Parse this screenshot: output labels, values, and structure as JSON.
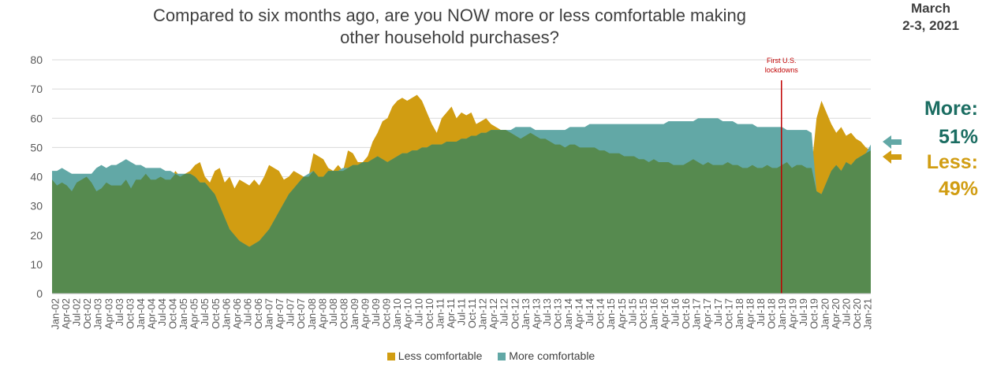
{
  "title_line1": "Compared to six months ago, are you NOW more or less comfortable making",
  "title_line2": "other household purchases?",
  "date_line1": "March",
  "date_line2": "2-3, 2021",
  "annotation": {
    "line1": "First U.S.",
    "line2": "lockdowns"
  },
  "callout": {
    "more_label": "More:",
    "more_value": "51%",
    "less_label": "Less:",
    "less_value": "49%"
  },
  "colors": {
    "less": "#d19d12",
    "more": "#62a8a6",
    "overlap": "#568a4f",
    "annotation": "#c00000",
    "more_text": "#1b6d62"
  },
  "chart_data": {
    "type": "area",
    "title": "Compared to six months ago, are you NOW more or less comfortable making other household purchases?",
    "ylim": [
      0,
      80
    ],
    "yticks": [
      0,
      10,
      20,
      30,
      40,
      50,
      60,
      70,
      80
    ],
    "x_tick_labels": [
      "Jan-02",
      "Apr-02",
      "Jul-02",
      "Oct-02",
      "Jan-03",
      "Apr-03",
      "Jul-03",
      "Oct-03",
      "Jan-04",
      "Apr-04",
      "Jul-04",
      "Oct-04",
      "Jan-05",
      "Apr-05",
      "Jul-05",
      "Oct-05",
      "Jan-06",
      "Apr-06",
      "Jul-06",
      "Oct-06",
      "Jan-07",
      "Apr-07",
      "Jul-07",
      "Oct-07",
      "Jan-08",
      "Apr-08",
      "Jul-08",
      "Oct-08",
      "Jan-09",
      "Apr-09",
      "Jul-09",
      "Oct-09",
      "Jan-10",
      "Apr-10",
      "Jul-10",
      "Oct-10",
      "Jan-11",
      "Apr-11",
      "Jul-11",
      "Oct-11",
      "Jan-12",
      "Apr-12",
      "Jul-12",
      "Oct-12",
      "Jan-13",
      "Apr-13",
      "Jul-13",
      "Oct-13",
      "Jan-14",
      "Apr-14",
      "Jul-14",
      "Oct-14",
      "Jan-15",
      "Apr-15",
      "Jul-15",
      "Oct-15",
      "Jan-16",
      "Apr-16",
      "Jul-16",
      "Oct-16",
      "Jan-17",
      "Apr-17",
      "Jul-17",
      "Oct-17",
      "Jan-18",
      "Apr-18",
      "Jul-18",
      "Oct-18",
      "Jan-19",
      "Apr-19",
      "Jul-19",
      "Oct-19",
      "Jan-20",
      "Apr-20",
      "Jul-20",
      "Oct-20",
      "Jan-21"
    ],
    "legend_position": "bottom",
    "grid": true,
    "series": [
      {
        "name": "Less comfortable",
        "color": "#d19d12",
        "values": [
          39,
          37,
          38,
          37,
          35,
          38,
          39,
          40,
          38,
          35,
          36,
          38,
          37,
          37,
          37,
          39,
          36,
          39,
          39,
          41,
          39,
          39,
          40,
          39,
          39,
          42,
          40,
          41,
          42,
          44,
          45,
          40,
          38,
          42,
          43,
          38,
          40,
          36,
          39,
          38,
          37,
          39,
          37,
          40,
          44,
          43,
          42,
          39,
          40,
          42,
          41,
          40,
          40,
          48,
          47,
          46,
          43,
          42,
          44,
          42,
          49,
          48,
          45,
          45,
          47,
          52,
          55,
          59,
          60,
          64,
          66,
          67,
          66,
          67,
          68,
          66,
          62,
          58,
          55,
          60,
          62,
          64,
          60,
          62,
          61,
          62,
          58,
          59,
          60,
          58,
          57,
          56,
          56,
          55,
          54,
          53,
          54,
          55,
          54,
          53,
          53,
          52,
          51,
          51,
          50,
          51,
          51,
          50,
          50,
          50,
          50,
          49,
          49,
          48,
          48,
          48,
          47,
          47,
          47,
          46,
          46,
          45,
          46,
          45,
          45,
          45,
          44,
          44,
          44,
          45,
          46,
          45,
          44,
          45,
          44,
          44,
          44,
          45,
          44,
          44,
          43,
          43,
          44,
          43,
          43,
          44,
          43,
          43,
          44,
          45,
          43,
          44,
          44,
          43,
          43,
          60,
          66,
          62,
          58,
          55,
          57,
          54,
          55,
          53,
          52,
          50,
          49
        ]
      },
      {
        "name": "More comfortable",
        "color": "#62a8a6",
        "values": [
          42,
          42,
          43,
          42,
          41,
          41,
          41,
          41,
          41,
          43,
          44,
          43,
          44,
          44,
          45,
          46,
          45,
          44,
          44,
          43,
          43,
          43,
          43,
          42,
          42,
          41,
          41,
          41,
          41,
          40,
          38,
          38,
          36,
          34,
          30,
          26,
          22,
          20,
          18,
          17,
          16,
          17,
          18,
          20,
          22,
          25,
          28,
          31,
          34,
          36,
          38,
          40,
          41,
          42,
          40,
          40,
          42,
          42,
          42,
          43,
          43,
          44,
          44,
          45,
          45,
          46,
          47,
          46,
          45,
          46,
          47,
          48,
          48,
          49,
          49,
          50,
          50,
          51,
          51,
          51,
          52,
          52,
          52,
          53,
          53,
          54,
          54,
          55,
          55,
          56,
          56,
          56,
          56,
          56,
          57,
          57,
          57,
          57,
          56,
          56,
          56,
          56,
          56,
          56,
          56,
          57,
          57,
          57,
          57,
          58,
          58,
          58,
          58,
          58,
          58,
          58,
          58,
          58,
          58,
          58,
          58,
          58,
          58,
          58,
          58,
          59,
          59,
          59,
          59,
          59,
          59,
          60,
          60,
          60,
          60,
          60,
          59,
          59,
          59,
          58,
          58,
          58,
          58,
          57,
          57,
          57,
          57,
          57,
          57,
          56,
          56,
          56,
          56,
          56,
          55,
          35,
          34,
          38,
          42,
          44,
          42,
          45,
          44,
          46,
          47,
          48,
          51
        ]
      }
    ]
  },
  "legend": [
    {
      "label": "Less comfortable",
      "color": "#d19d12"
    },
    {
      "label": "More comfortable",
      "color": "#62a8a6"
    }
  ]
}
